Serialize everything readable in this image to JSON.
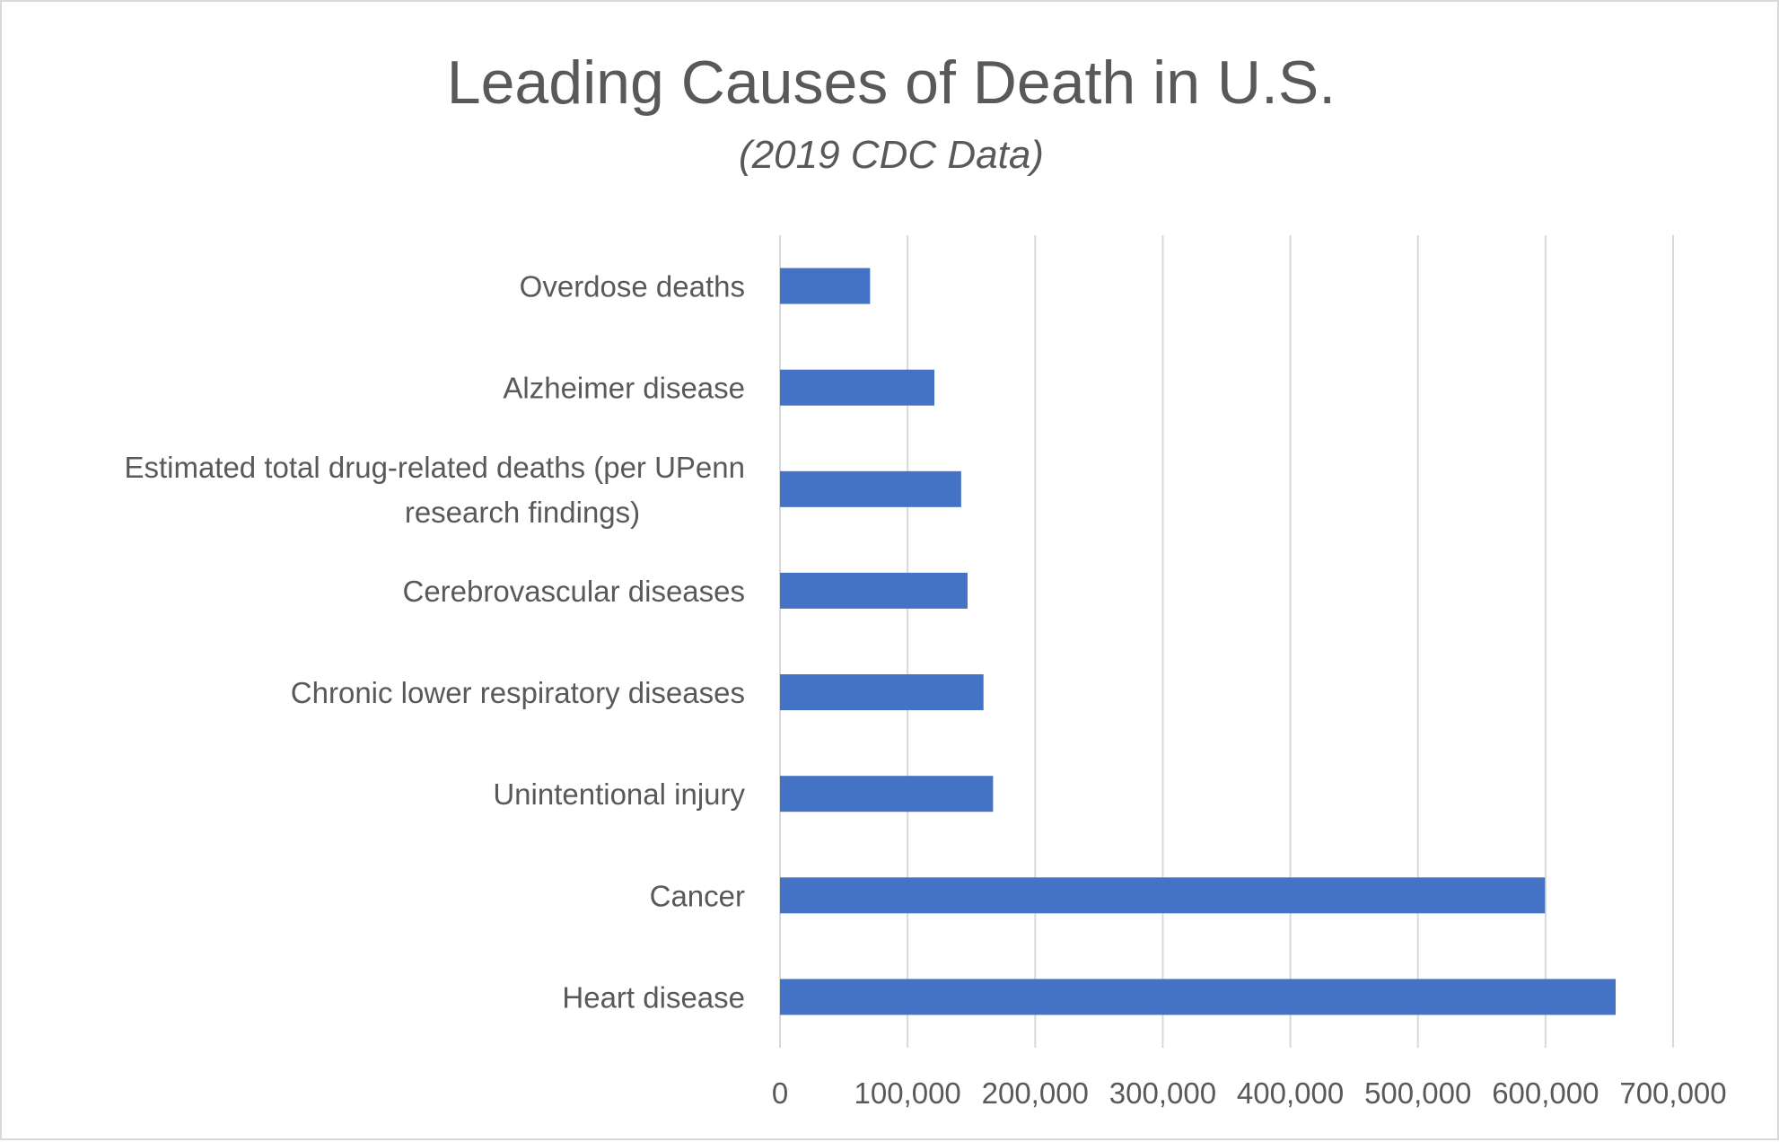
{
  "chart_data": {
    "type": "bar",
    "orientation": "horizontal",
    "title": "Leading Causes of Death in U.S.",
    "subtitle": "(2019 CDC Data)",
    "xlabel": "",
    "ylabel": "",
    "categories": [
      "Heart disease",
      "Cancer",
      "Unintentional injury",
      "Chronic lower respiratory diseases",
      "Cerebrovascular diseases",
      "Estimated total drug-related deaths (per UPenn research findings)",
      "Alzheimer disease",
      "Overdose deaths"
    ],
    "category_label_lines": [
      [
        "Heart disease"
      ],
      [
        "Cancer"
      ],
      [
        "Unintentional injury"
      ],
      [
        "Chronic lower respiratory diseases"
      ],
      [
        "Cerebrovascular diseases"
      ],
      [
        "Estimated total drug-related deaths (per UPenn",
        "research findings)"
      ],
      [
        "Alzheimer disease"
      ],
      [
        "Overdose deaths"
      ]
    ],
    "series": [
      {
        "values": [
          655000,
          599600,
          167000,
          159500,
          147000,
          142000,
          121000,
          70600
        ]
      }
    ],
    "xlim": [
      0,
      700000
    ],
    "xticks": [
      0,
      100000,
      200000,
      300000,
      400000,
      500000,
      600000,
      700000
    ],
    "xtick_labels": [
      "0",
      "100,000",
      "200,000",
      "300,000",
      "400,000",
      "500,000",
      "600,000",
      "700,000"
    ],
    "grid": true,
    "legend": "none",
    "colors": {
      "bar": "#4472c4",
      "text": "#595959",
      "grid": "#d9d9d9"
    }
  }
}
